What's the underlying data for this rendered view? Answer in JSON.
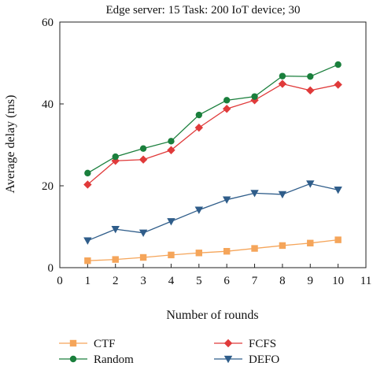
{
  "chart_data": {
    "type": "line",
    "title": "Edge server: 15 Task: 200 IoT device; 30",
    "xlabel": "Number of rounds",
    "ylabel": "Average delay (ms)",
    "xlim": [
      0,
      11
    ],
    "ylim": [
      0,
      60
    ],
    "xticks": [
      0,
      1,
      2,
      3,
      4,
      5,
      6,
      7,
      8,
      9,
      10,
      11
    ],
    "yticks": [
      0,
      20,
      40,
      60
    ],
    "grid": false,
    "legend_position": "bottom",
    "x": [
      1,
      2,
      3,
      4,
      5,
      6,
      7,
      8,
      9,
      10
    ],
    "series": [
      {
        "name": "CTF",
        "color": "#f5a55a",
        "marker": "square",
        "values": [
          1.7,
          2.0,
          2.5,
          3.1,
          3.6,
          4.0,
          4.7,
          5.4,
          6.0,
          6.8
        ]
      },
      {
        "name": "FCFS",
        "color": "#e03a3a",
        "marker": "diamond",
        "values": [
          20.3,
          26.1,
          26.4,
          28.7,
          34.2,
          38.8,
          40.9,
          44.9,
          43.3,
          44.7
        ]
      },
      {
        "name": "Random",
        "color": "#1a7f3c",
        "marker": "circle",
        "values": [
          23.1,
          27.1,
          29.1,
          30.9,
          37.3,
          40.9,
          41.8,
          46.8,
          46.7,
          49.6
        ]
      },
      {
        "name": "DEFO",
        "color": "#2f5d8a",
        "marker": "triangle-down",
        "values": [
          6.6,
          9.4,
          8.5,
          11.3,
          14.1,
          16.6,
          18.2,
          17.9,
          20.5,
          19.0
        ]
      }
    ]
  }
}
